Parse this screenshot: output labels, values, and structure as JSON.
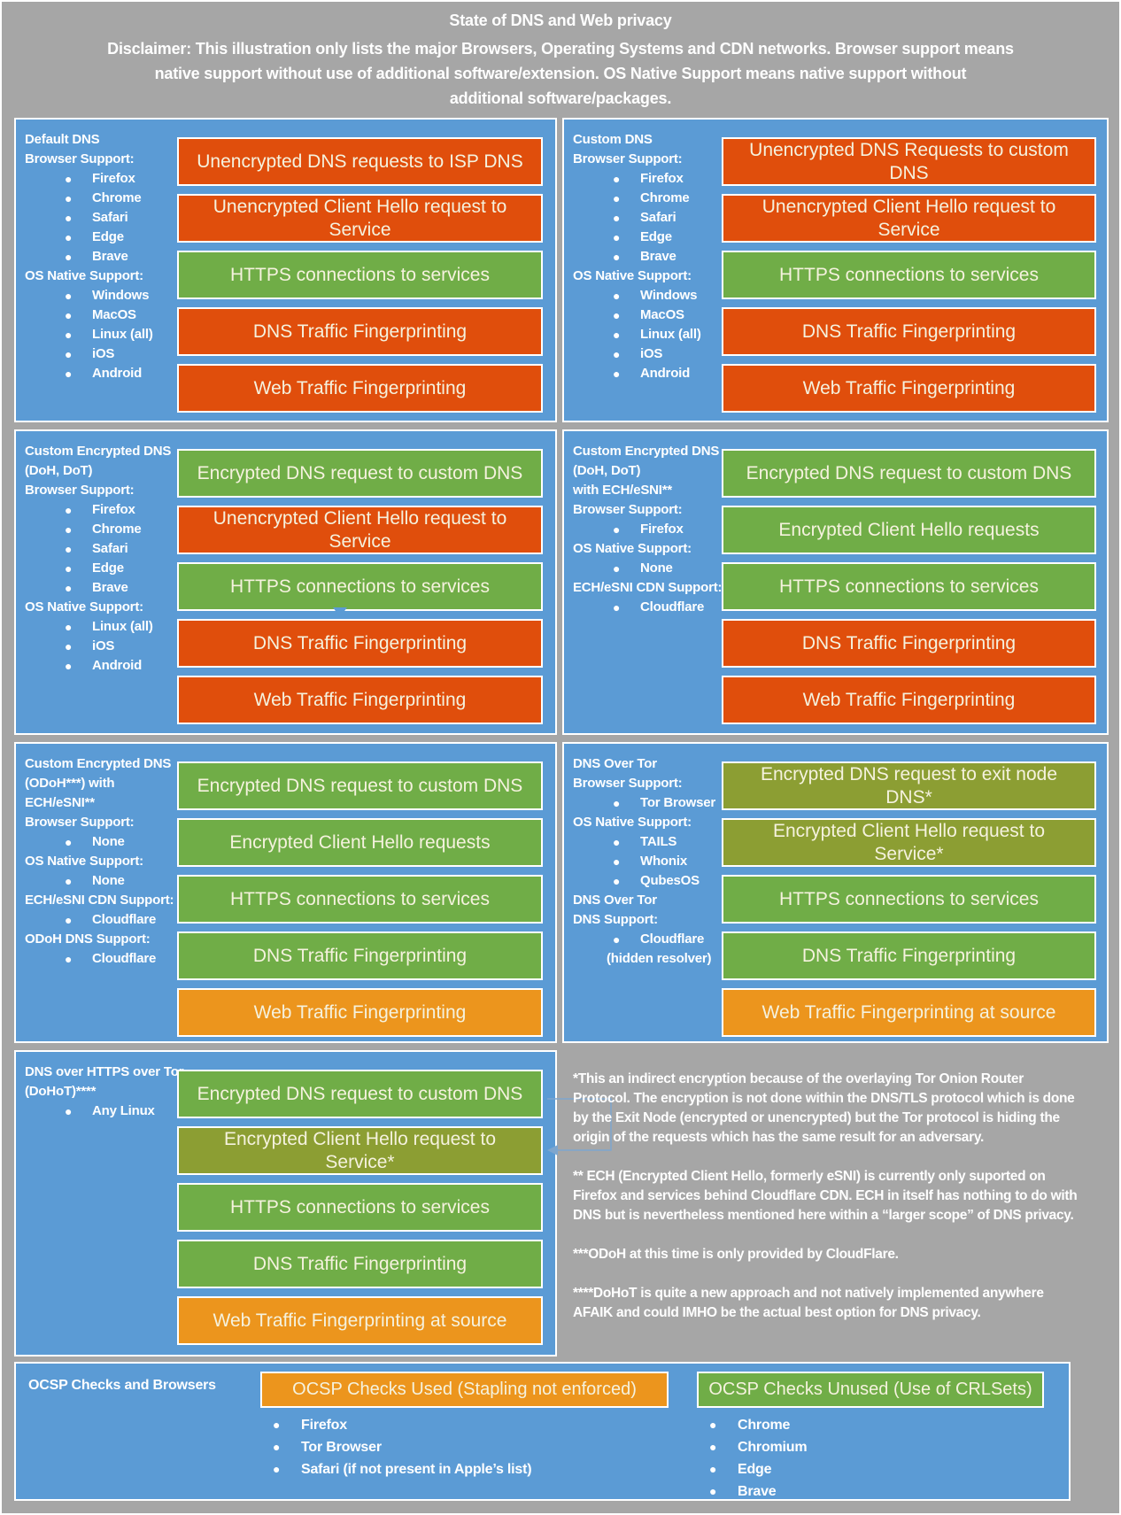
{
  "title": "State of DNS and Web privacy",
  "disclaimer": "Disclaimer: This illustration only lists the major Browsers, Operating Systems and CDN networks. Browser support means\nnative support without use of additional software/extension. OS Native Support means native support without\nadditional software/packages.",
  "colors": {
    "background": "#A6A6A6",
    "panel": "#5B9BD5",
    "orange": "#E04E0C",
    "green": "#70AD47",
    "olive": "#8C9E33",
    "amber": "#EC951D",
    "bar_text": "#F5F2DE",
    "label_text": "#FFFFFF",
    "connector": "#7EA6CE"
  },
  "panels": [
    {
      "name": "default-dns",
      "side": [
        {
          "t": "h",
          "x": "Default DNS"
        },
        {
          "t": "h",
          "x": "Browser Support:"
        },
        {
          "t": "b",
          "x": "Firefox"
        },
        {
          "t": "b",
          "x": "Chrome"
        },
        {
          "t": "b",
          "x": "Safari"
        },
        {
          "t": "b",
          "x": "Edge"
        },
        {
          "t": "b",
          "x": "Brave"
        },
        {
          "t": "h",
          "x": "OS Native Support:"
        },
        {
          "t": "b",
          "x": "Windows"
        },
        {
          "t": "b",
          "x": "MacOS"
        },
        {
          "t": "b",
          "x": "Linux (all)"
        },
        {
          "t": "b",
          "x": "iOS"
        },
        {
          "t": "b",
          "x": "Android"
        }
      ],
      "bars": [
        {
          "c": "orange",
          "x": "Unencrypted DNS requests to ISP DNS"
        },
        {
          "c": "orange",
          "x": "Unencrypted Client Hello request to\nService"
        },
        {
          "c": "green",
          "x": "HTTPS connections to services"
        },
        {
          "c": "orange",
          "x": "DNS Traffic Fingerprinting"
        },
        {
          "c": "orange",
          "x": "Web Traffic Fingerprinting"
        }
      ]
    },
    {
      "name": "custom-dns",
      "side": [
        {
          "t": "h",
          "x": "Custom DNS"
        },
        {
          "t": "h",
          "x": "Browser Support:"
        },
        {
          "t": "b",
          "x": "Firefox"
        },
        {
          "t": "b",
          "x": "Chrome"
        },
        {
          "t": "b",
          "x": "Safari"
        },
        {
          "t": "b",
          "x": "Edge"
        },
        {
          "t": "b",
          "x": "Brave"
        },
        {
          "t": "h",
          "x": "OS Native Support:"
        },
        {
          "t": "b",
          "x": "Windows"
        },
        {
          "t": "b",
          "x": "MacOS"
        },
        {
          "t": "b",
          "x": "Linux (all)"
        },
        {
          "t": "b",
          "x": "iOS"
        },
        {
          "t": "b",
          "x": "Android"
        }
      ],
      "bars": [
        {
          "c": "orange",
          "x": "Unencrypted DNS Requests to custom\nDNS"
        },
        {
          "c": "orange",
          "x": "Unencrypted Client Hello request to\nService"
        },
        {
          "c": "green",
          "x": "HTTPS connections to services"
        },
        {
          "c": "orange",
          "x": "DNS Traffic Fingerprinting"
        },
        {
          "c": "orange",
          "x": "Web Traffic Fingerprinting"
        }
      ]
    },
    {
      "name": "custom-encrypted-dns-doh-dot",
      "side": [
        {
          "t": "h",
          "x": "Custom Encrypted DNS"
        },
        {
          "t": "h",
          "x": "(DoH, DoT)"
        },
        {
          "t": "h",
          "x": "Browser Support:"
        },
        {
          "t": "b",
          "x": "Firefox"
        },
        {
          "t": "b",
          "x": "Chrome"
        },
        {
          "t": "b",
          "x": "Safari"
        },
        {
          "t": "b",
          "x": "Edge"
        },
        {
          "t": "b",
          "x": "Brave"
        },
        {
          "t": "h",
          "x": "OS Native Support:"
        },
        {
          "t": "b",
          "x": "Linux (all)"
        },
        {
          "t": "b",
          "x": "iOS"
        },
        {
          "t": "b",
          "x": "Android"
        }
      ],
      "bars": [
        {
          "c": "green",
          "x": "Encrypted DNS request to custom DNS"
        },
        {
          "c": "orange",
          "x": "Unencrypted Client Hello request to\nService"
        },
        {
          "c": "green",
          "x": "HTTPS connections to services"
        },
        {
          "c": "orange",
          "x": "DNS Traffic Fingerprinting"
        },
        {
          "c": "orange",
          "x": "Web Traffic Fingerprinting"
        }
      ]
    },
    {
      "name": "custom-encrypted-dns-doh-dot-ech-esni",
      "side": [
        {
          "t": "h",
          "x": "Custom Encrypted DNS"
        },
        {
          "t": "h",
          "x": "(DoH, DoT)"
        },
        {
          "t": "h",
          "x": "with ECH/eSNI**"
        },
        {
          "t": "h",
          "x": "Browser Support:"
        },
        {
          "t": "b",
          "x": "Firefox"
        },
        {
          "t": "h",
          "x": "OS Native Support:"
        },
        {
          "t": "b",
          "x": "None"
        },
        {
          "t": "h",
          "x": "ECH/eSNI CDN Support:"
        },
        {
          "t": "b",
          "x": "Cloudflare"
        }
      ],
      "bars": [
        {
          "c": "green",
          "x": "Encrypted DNS request to custom DNS"
        },
        {
          "c": "green",
          "x": "Encrypted Client Hello requests"
        },
        {
          "c": "green",
          "x": "HTTPS connections to services"
        },
        {
          "c": "orange",
          "x": "DNS Traffic Fingerprinting"
        },
        {
          "c": "orange",
          "x": "Web Traffic Fingerprinting"
        }
      ]
    },
    {
      "name": "custom-encrypted-dns-odoh-ech-esni",
      "side": [
        {
          "t": "h",
          "x": "Custom Encrypted DNS"
        },
        {
          "t": "h",
          "x": "(ODoH***) with"
        },
        {
          "t": "h",
          "x": "ECH/eSNI**"
        },
        {
          "t": "h",
          "x": "Browser Support:"
        },
        {
          "t": "b",
          "x": "None"
        },
        {
          "t": "h",
          "x": "OS Native Support:"
        },
        {
          "t": "b",
          "x": "None"
        },
        {
          "t": "h",
          "x": "ECH/eSNI CDN Support:"
        },
        {
          "t": "b",
          "x": "Cloudflare"
        },
        {
          "t": "h",
          "x": "ODoH DNS Support:"
        },
        {
          "t": "b",
          "x": "Cloudflare"
        }
      ],
      "bars": [
        {
          "c": "green",
          "x": "Encrypted DNS request to custom DNS"
        },
        {
          "c": "green",
          "x": "Encrypted Client Hello requests"
        },
        {
          "c": "green",
          "x": "HTTPS connections to services"
        },
        {
          "c": "green",
          "x": "DNS Traffic Fingerprinting"
        },
        {
          "c": "amber",
          "x": "Web Traffic Fingerprinting"
        }
      ]
    },
    {
      "name": "dns-over-tor",
      "side": [
        {
          "t": "h",
          "x": "DNS Over Tor"
        },
        {
          "t": "h",
          "x": "Browser Support:"
        },
        {
          "t": "b",
          "x": "Tor Browser"
        },
        {
          "t": "h",
          "x": "OS Native Support:"
        },
        {
          "t": "b",
          "x": "TAILS"
        },
        {
          "t": "b",
          "x": "Whonix"
        },
        {
          "t": "b",
          "x": "QubesOS"
        },
        {
          "t": "h",
          "x": "DNS Over Tor"
        },
        {
          "t": "h",
          "x": "DNS Support:"
        },
        {
          "t": "b",
          "x": "Cloudflare"
        },
        {
          "t": "p",
          "x": "(hidden resolver)"
        }
      ],
      "bars": [
        {
          "c": "olive",
          "x": "Encrypted DNS request to exit node\nDNS*"
        },
        {
          "c": "olive",
          "x": "Encrypted Client Hello request to\nService*"
        },
        {
          "c": "green",
          "x": "HTTPS connections to services"
        },
        {
          "c": "green",
          "x": "DNS Traffic Fingerprinting"
        },
        {
          "c": "amber",
          "x": "Web Traffic Fingerprinting at source"
        }
      ]
    },
    {
      "name": "dns-over-https-over-tor",
      "side": [
        {
          "t": "h",
          "x": "DNS over HTTPS over Tor"
        },
        {
          "t": "h",
          "x": "(DoHoT)****"
        },
        {
          "t": "b",
          "x": "Any Linux"
        }
      ],
      "bars": [
        {
          "c": "green",
          "x": "Encrypted DNS request to custom DNS"
        },
        {
          "c": "olive",
          "x": "Encrypted Client Hello request to\nService*"
        },
        {
          "c": "green",
          "x": "HTTPS connections to services"
        },
        {
          "c": "green",
          "x": "DNS Traffic Fingerprinting"
        },
        {
          "c": "amber",
          "x": "Web Traffic Fingerprinting at source"
        }
      ]
    }
  ],
  "footnotes": [
    "*This an indirect encryption because of the overlaying Tor Onion Router\nProtocol. The encryption is not done within the DNS/TLS protocol which is done\nby the Exit Node (encrypted or unencrypted) but the Tor protocol is hiding the\norigin of the requests which has the same result for an adversary.",
    "** ECH (Encrypted Client Hello, formerly eSNI) is currently only suported on\nFirefox and services behind Cloudflare CDN. ECH in itself has nothing to do with\nDNS but is nevertheless mentioned here within a “larger scope” of DNS privacy.",
    "***ODoH at this time is only provided by CloudFlare.",
    "****DoHoT is quite a new approach and not natively implemented anywhere\nAFAIK and could IMHO be the actual best option for DNS privacy."
  ],
  "ocsp": {
    "title": "OCSP Checks and Browsers",
    "used": {
      "label": "OCSP Checks Used (Stapling not enforced)",
      "items": [
        "Firefox",
        "Tor Browser",
        "Safari (if not present in Apple’s list)"
      ]
    },
    "unused": {
      "label": "OCSP Checks Unused (Use of CRLSets)",
      "items": [
        "Chrome",
        "Chromium",
        "Edge",
        "Brave"
      ]
    }
  }
}
